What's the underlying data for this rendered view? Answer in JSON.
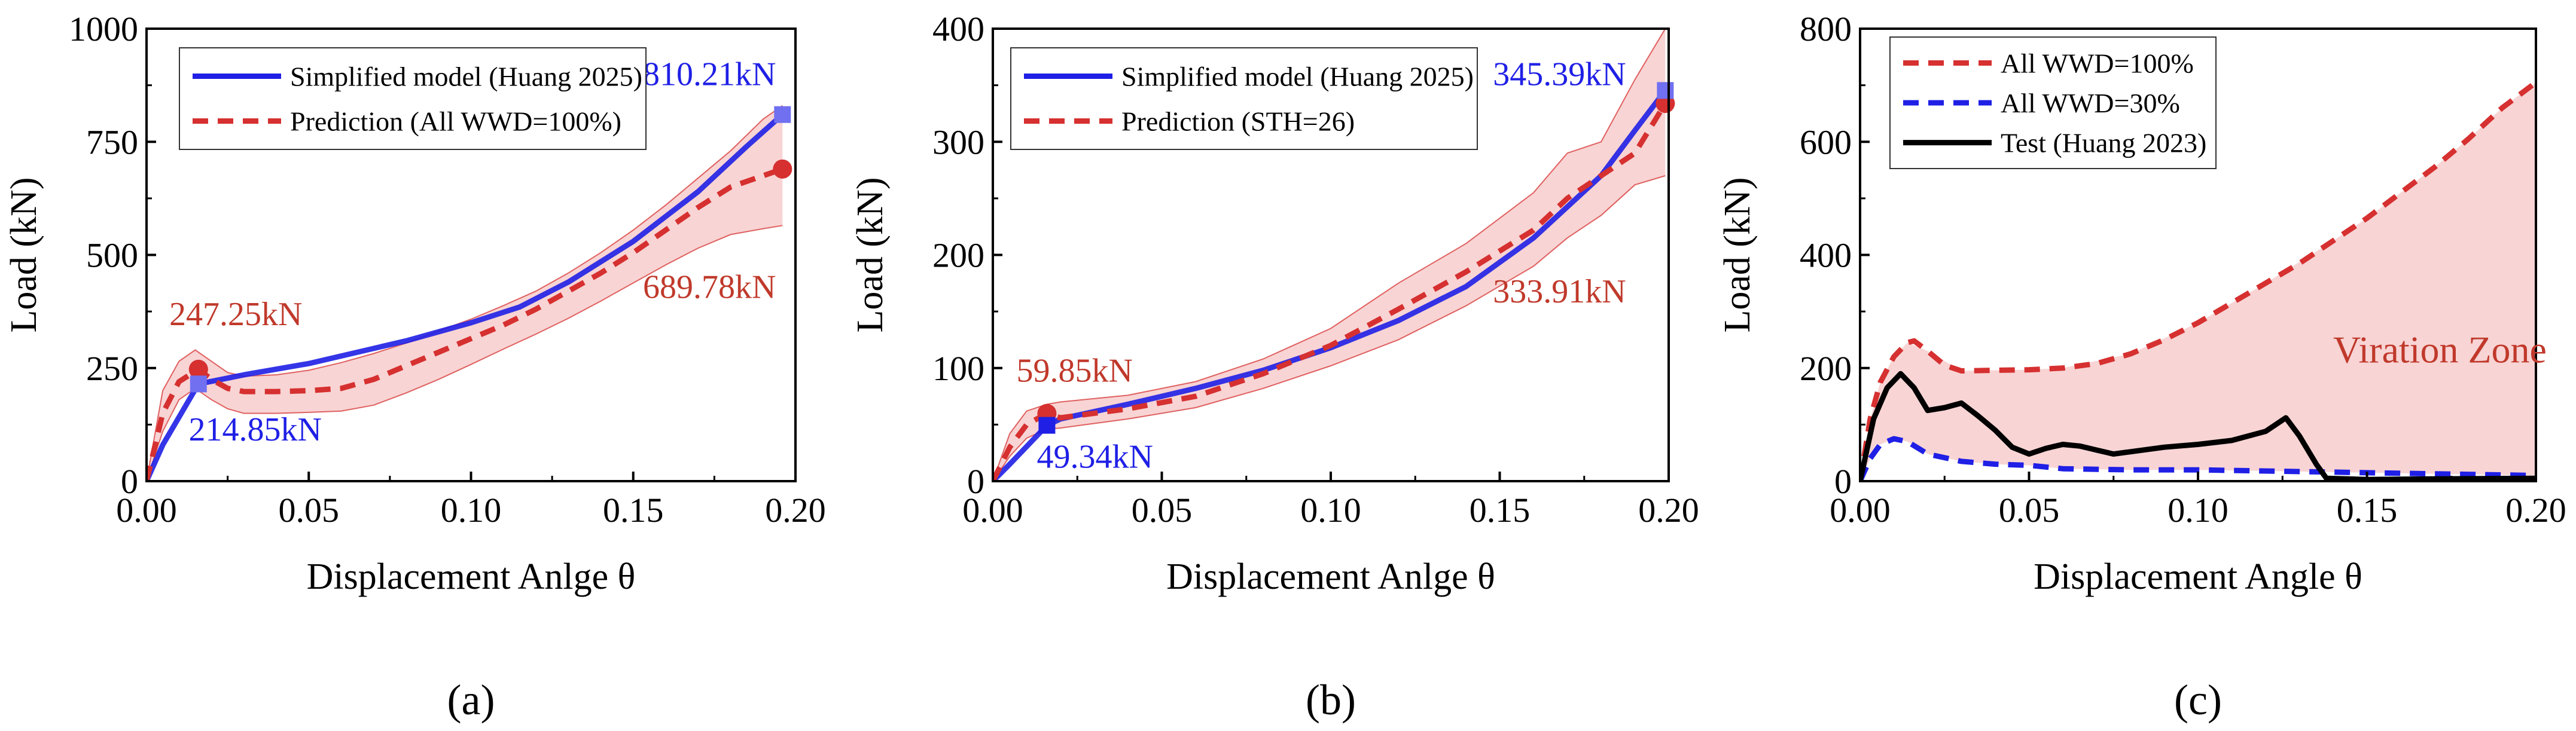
{
  "chart_data": [
    {
      "type": "line",
      "panel_label": "(a)",
      "xlabel": "Displacement Anlge θ",
      "ylabel": "Load (kN)",
      "xlim": [
        0,
        0.2
      ],
      "ylim": [
        0,
        1000
      ],
      "xticks": [
        "0.00",
        "0.05",
        "0.10",
        "0.15",
        "0.20"
      ],
      "yticks": [
        "0",
        "250",
        "500",
        "750",
        "1000"
      ],
      "legend_position": "top-left",
      "series": [
        {
          "name": "Simplified model (Huang 2025)",
          "color": "#1f1fe6",
          "style": "solid",
          "x": [
            0,
            0.005,
            0.016,
            0.03,
            0.05,
            0.08,
            0.1,
            0.115,
            0.13,
            0.15,
            0.17,
            0.185,
            0.196
          ],
          "y": [
            0,
            80,
            214.85,
            235,
            260,
            310,
            350,
            385,
            440,
            530,
            640,
            740,
            810.21
          ]
        },
        {
          "name": "Prediction (All WWD=100%)",
          "color": "#d63030",
          "style": "dashed",
          "x": [
            0,
            0.005,
            0.01,
            0.016,
            0.02,
            0.025,
            0.03,
            0.04,
            0.05,
            0.06,
            0.07,
            0.08,
            0.09,
            0.1,
            0.11,
            0.12,
            0.13,
            0.14,
            0.15,
            0.16,
            0.17,
            0.18,
            0.196
          ],
          "y": [
            0,
            150,
            220,
            247.25,
            225,
            205,
            198,
            198,
            200,
            205,
            225,
            255,
            285,
            315,
            345,
            380,
            420,
            460,
            505,
            555,
            605,
            650,
            689.78
          ]
        }
      ],
      "band": {
        "color": "#f5c6c6",
        "x": [
          0,
          0.005,
          0.01,
          0.015,
          0.02,
          0.025,
          0.03,
          0.04,
          0.05,
          0.06,
          0.07,
          0.08,
          0.09,
          0.1,
          0.11,
          0.12,
          0.13,
          0.14,
          0.15,
          0.16,
          0.17,
          0.18,
          0.19,
          0.196
        ],
        "upper": [
          0,
          200,
          265,
          290,
          265,
          240,
          232,
          235,
          245,
          262,
          282,
          305,
          332,
          358,
          388,
          420,
          460,
          505,
          555,
          610,
          670,
          730,
          800,
          830
        ],
        "lower": [
          0,
          110,
          180,
          205,
          180,
          160,
          150,
          150,
          152,
          155,
          168,
          195,
          225,
          258,
          292,
          325,
          360,
          398,
          438,
          478,
          515,
          545,
          558,
          565
        ]
      },
      "markers": [
        {
          "shape": "circle",
          "color": "#d63030",
          "x": 0.016,
          "y": 247.25
        },
        {
          "shape": "square",
          "color": "#7070f0",
          "x": 0.016,
          "y": 214.85
        },
        {
          "shape": "circle",
          "color": "#d63030",
          "x": 0.196,
          "y": 689.78
        },
        {
          "shape": "square",
          "color": "#7070f0",
          "x": 0.196,
          "y": 810.21
        }
      ],
      "annotations": [
        {
          "text": "247.25kN",
          "color": "#c0392b",
          "x": 0.007,
          "y": 345
        },
        {
          "text": "214.85kN",
          "color": "#1f1fe6",
          "x": 0.013,
          "y": 90
        },
        {
          "text": "810.21kN",
          "color": "#1f1fe6",
          "x": 0.153,
          "y": 875
        },
        {
          "text": "689.78kN",
          "color": "#c0392b",
          "x": 0.153,
          "y": 405
        }
      ]
    },
    {
      "type": "line",
      "panel_label": "(b)",
      "xlabel": "Displacement Anlge θ",
      "ylabel": "Load (kN)",
      "xlim": [
        0,
        0.2
      ],
      "ylim": [
        0,
        400
      ],
      "xticks": [
        "0.00",
        "0.05",
        "0.10",
        "0.15",
        "0.20"
      ],
      "yticks": [
        "0",
        "100",
        "200",
        "300",
        "400"
      ],
      "legend_position": "top-left",
      "series": [
        {
          "name": "Simplified model (Huang 2025)",
          "color": "#1f1fe6",
          "style": "solid",
          "x": [
            0,
            0.005,
            0.016,
            0.02,
            0.04,
            0.06,
            0.08,
            0.1,
            0.12,
            0.14,
            0.16,
            0.18,
            0.19,
            0.199
          ],
          "y": [
            0,
            15,
            49.34,
            55,
            68,
            82,
            98,
            118,
            142,
            172,
            215,
            270,
            310,
            345.39
          ]
        },
        {
          "name": "Prediction (STH=26)",
          "color": "#d63030",
          "style": "dashed",
          "x": [
            0,
            0.005,
            0.01,
            0.016,
            0.02,
            0.04,
            0.06,
            0.08,
            0.1,
            0.12,
            0.14,
            0.16,
            0.17,
            0.18,
            0.19,
            0.199
          ],
          "y": [
            0,
            30,
            50,
            59.85,
            56,
            64,
            75,
            95,
            120,
            152,
            185,
            222,
            250,
            270,
            290,
            333.91
          ]
        }
      ],
      "band": {
        "color": "#f5c6c6",
        "x": [
          0,
          0.005,
          0.01,
          0.016,
          0.02,
          0.04,
          0.06,
          0.08,
          0.1,
          0.12,
          0.14,
          0.16,
          0.17,
          0.18,
          0.19,
          0.199
        ],
        "upper": [
          0,
          42,
          62,
          68,
          70,
          76,
          88,
          108,
          135,
          175,
          210,
          255,
          290,
          300,
          355,
          400
        ],
        "lower": [
          0,
          22,
          38,
          46,
          47,
          55,
          65,
          82,
          102,
          125,
          155,
          190,
          215,
          235,
          262,
          270
        ]
      },
      "markers": [
        {
          "shape": "circle",
          "color": "#d63030",
          "x": 0.016,
          "y": 59.85
        },
        {
          "shape": "square",
          "color": "#1f1fe6",
          "x": 0.016,
          "y": 49.34
        },
        {
          "shape": "circle",
          "color": "#d63030",
          "x": 0.199,
          "y": 333.91
        },
        {
          "shape": "square",
          "color": "#7070f0",
          "x": 0.199,
          "y": 345.39
        }
      ],
      "annotations": [
        {
          "text": "59.85kN",
          "color": "#c0392b",
          "x": 0.007,
          "y": 88
        },
        {
          "text": "49.34kN",
          "color": "#1f1fe6",
          "x": 0.013,
          "y": 12
        },
        {
          "text": "345.39kN",
          "color": "#1f1fe6",
          "x": 0.148,
          "y": 350
        },
        {
          "text": "333.91kN",
          "color": "#c0392b",
          "x": 0.148,
          "y": 158
        }
      ]
    },
    {
      "type": "line",
      "panel_label": "(c)",
      "xlabel": "Displacement Angle θ",
      "ylabel": "Load (kN)",
      "xlim": [
        0,
        0.2
      ],
      "ylim": [
        0,
        800
      ],
      "xticks": [
        "0.00",
        "0.05",
        "0.10",
        "0.15",
        "0.20"
      ],
      "yticks": [
        "0",
        "200",
        "400",
        "600",
        "800"
      ],
      "legend_position": "top-left",
      "series": [
        {
          "name": "All WWD=100%",
          "color": "#d63030",
          "style": "dashed",
          "x": [
            0,
            0.003,
            0.006,
            0.01,
            0.014,
            0.016,
            0.02,
            0.025,
            0.03,
            0.04,
            0.05,
            0.06,
            0.07,
            0.08,
            0.09,
            0.1,
            0.11,
            0.12,
            0.13,
            0.14,
            0.15,
            0.16,
            0.17,
            0.18,
            0.19,
            0.2
          ],
          "y": [
            0,
            110,
            175,
            220,
            245,
            248,
            230,
            205,
            195,
            196,
            197,
            200,
            208,
            225,
            250,
            280,
            315,
            350,
            385,
            425,
            465,
            510,
            555,
            605,
            660,
            705
          ]
        },
        {
          "name": "All WWD=30%",
          "color": "#1f1fe6",
          "style": "dashed",
          "x": [
            0,
            0.003,
            0.006,
            0.01,
            0.014,
            0.02,
            0.03,
            0.04,
            0.05,
            0.06,
            0.08,
            0.1,
            0.12,
            0.14,
            0.16,
            0.18,
            0.2
          ],
          "y": [
            0,
            40,
            65,
            75,
            70,
            48,
            35,
            30,
            28,
            22,
            20,
            20,
            18,
            16,
            14,
            12,
            10
          ]
        },
        {
          "name": "Test (Huang 2023)",
          "color": "#000000",
          "style": "solid",
          "x": [
            0,
            0.004,
            0.008,
            0.012,
            0.016,
            0.02,
            0.025,
            0.03,
            0.035,
            0.04,
            0.045,
            0.05,
            0.055,
            0.06,
            0.065,
            0.07,
            0.075,
            0.08,
            0.09,
            0.1,
            0.11,
            0.12,
            0.126,
            0.13,
            0.135,
            0.138,
            0.15,
            0.17,
            0.2
          ],
          "y": [
            0,
            110,
            165,
            190,
            165,
            125,
            130,
            138,
            115,
            90,
            60,
            48,
            58,
            65,
            62,
            55,
            48,
            52,
            60,
            65,
            72,
            88,
            112,
            80,
            30,
            5,
            3,
            4,
            5
          ]
        }
      ],
      "band": {
        "color": "#f5c6c6",
        "x": [
          0,
          0.003,
          0.006,
          0.01,
          0.014,
          0.02,
          0.03,
          0.04,
          0.05,
          0.06,
          0.08,
          0.1,
          0.12,
          0.14,
          0.15,
          0.16,
          0.17,
          0.18,
          0.19,
          0.2
        ],
        "upper": [
          0,
          110,
          175,
          220,
          245,
          230,
          195,
          196,
          197,
          200,
          225,
          280,
          350,
          425,
          465,
          510,
          555,
          605,
          660,
          705
        ],
        "lower": [
          0,
          40,
          65,
          75,
          70,
          48,
          35,
          30,
          28,
          22,
          20,
          20,
          18,
          16,
          15,
          14,
          13,
          12,
          11,
          10
        ]
      },
      "markers": [],
      "annotations": [
        {
          "text": "Viration Zone",
          "color": "#c0392b",
          "x": 0.14,
          "y": 210
        }
      ]
    }
  ]
}
